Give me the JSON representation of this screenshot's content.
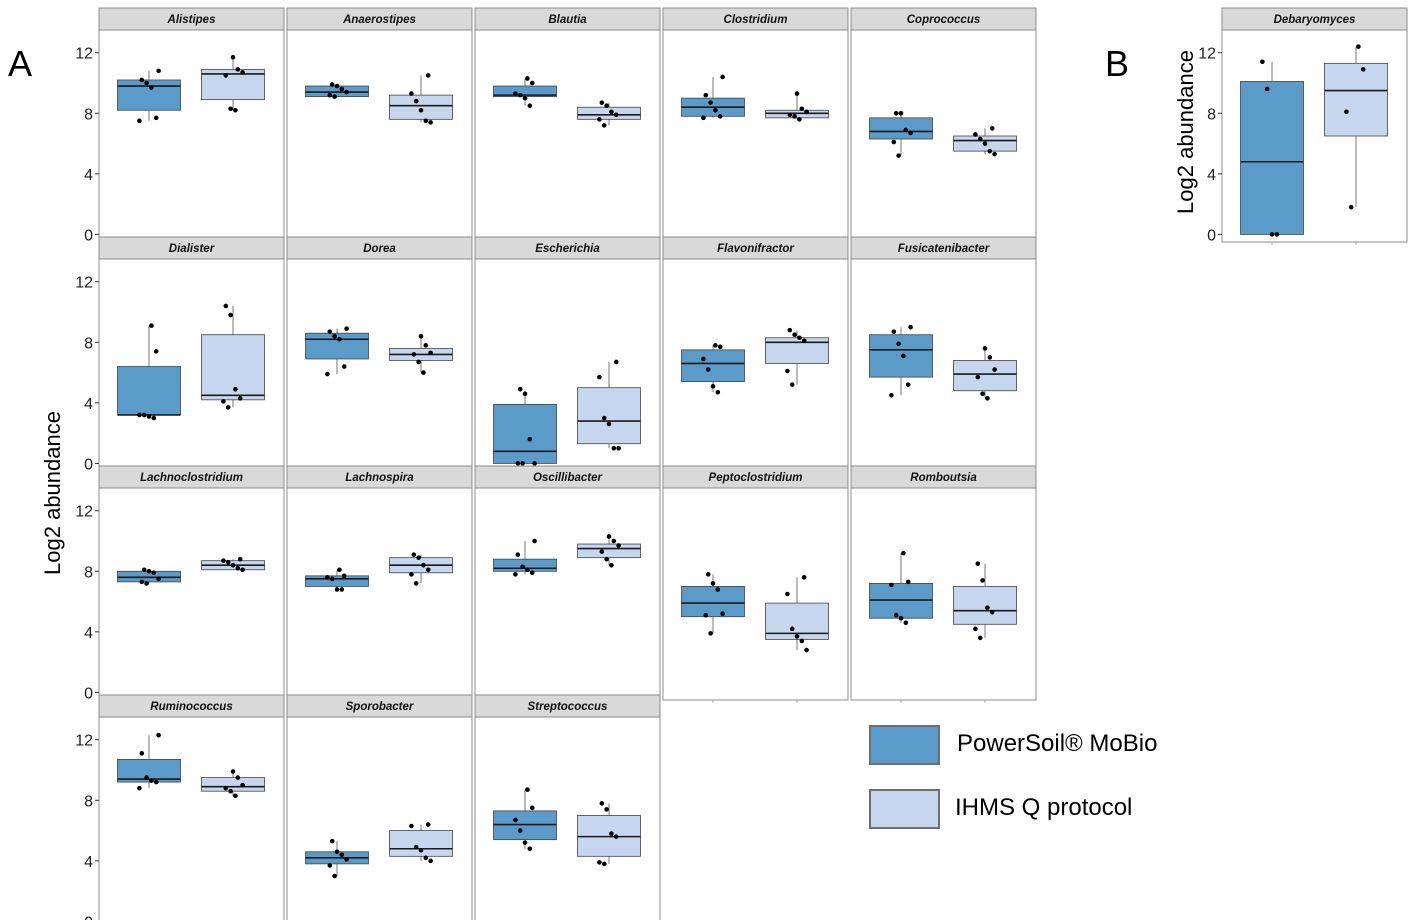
{
  "panel_labels": [
    "A",
    "B"
  ],
  "legend": {
    "entries": [
      {
        "label": "PowerSoil® MoBio",
        "color": "#5a9bca"
      },
      {
        "label": "IHMS Q protocol",
        "color": "#c6d6ee"
      }
    ]
  },
  "colors": {
    "group1_fill": "#5a9bca",
    "group2_fill": "#c6d6ee",
    "strip_fill": "#d9d9d9",
    "panel_border": "#8c8c8c",
    "legend_border": "#6f6f6f"
  },
  "chart_data": [
    {
      "type": "box",
      "panel": "A",
      "ylabel": "Log2 abundance",
      "ylim": [
        -0.5,
        13.5
      ],
      "yticks": [
        0,
        4,
        8,
        12
      ],
      "grid": false,
      "groups": [
        "PowerSoil® MoBio",
        "IHMS Q protocol"
      ],
      "facets": [
        {
          "title": "Alistipes",
          "boxes": [
            {
              "q1": 8.2,
              "median": 9.8,
              "q3": 10.2,
              "whisker_low": 7.5,
              "whisker_high": 10.8,
              "points": [
                7.5,
                7.7,
                9.7,
                10.0,
                10.2,
                10.8
              ]
            },
            {
              "q1": 8.9,
              "median": 10.6,
              "q3": 10.9,
              "whisker_low": 8.2,
              "whisker_high": 11.7,
              "points": [
                8.2,
                8.3,
                10.5,
                10.7,
                10.9,
                11.7
              ]
            }
          ]
        },
        {
          "title": "Anaerostipes",
          "boxes": [
            {
              "q1": 9.1,
              "median": 9.4,
              "q3": 9.8,
              "whisker_low": 9.1,
              "whisker_high": 9.9,
              "points": [
                9.1,
                9.2,
                9.4,
                9.6,
                9.8,
                9.9
              ]
            },
            {
              "q1": 7.6,
              "median": 8.5,
              "q3": 9.2,
              "whisker_low": 7.4,
              "whisker_high": 10.5,
              "points": [
                7.4,
                7.5,
                8.2,
                8.8,
                9.3,
                10.5
              ]
            }
          ]
        },
        {
          "title": "Blautia",
          "boxes": [
            {
              "q1": 9.1,
              "median": 9.2,
              "q3": 9.8,
              "whisker_low": 8.5,
              "whisker_high": 10.3,
              "points": [
                8.5,
                9.0,
                9.2,
                9.3,
                10.0,
                10.3
              ]
            },
            {
              "q1": 7.6,
              "median": 7.9,
              "q3": 8.4,
              "whisker_low": 7.2,
              "whisker_high": 8.7,
              "points": [
                7.2,
                7.6,
                7.9,
                8.1,
                8.5,
                8.7
              ]
            }
          ]
        },
        {
          "title": "Clostridium",
          "boxes": [
            {
              "q1": 7.8,
              "median": 8.4,
              "q3": 9.0,
              "whisker_low": 7.7,
              "whisker_high": 10.4,
              "points": [
                7.7,
                7.8,
                8.2,
                8.7,
                9.2,
                10.4
              ]
            },
            {
              "q1": 7.7,
              "median": 8.0,
              "q3": 8.2,
              "whisker_low": 7.6,
              "whisker_high": 9.3,
              "points": [
                7.6,
                7.8,
                7.9,
                8.1,
                8.3,
                9.3
              ]
            }
          ]
        },
        {
          "title": "Coprococcus",
          "boxes": [
            {
              "q1": 6.3,
              "median": 6.8,
              "q3": 7.7,
              "whisker_low": 5.2,
              "whisker_high": 8.0,
              "points": [
                5.2,
                6.1,
                6.7,
                6.9,
                8.0,
                8.0
              ]
            },
            {
              "q1": 5.5,
              "median": 6.2,
              "q3": 6.5,
              "whisker_low": 5.3,
              "whisker_high": 7.0,
              "points": [
                5.3,
                5.5,
                6.0,
                6.3,
                6.6,
                7.0
              ]
            }
          ]
        },
        {
          "title": "Dialister",
          "boxes": [
            {
              "q1": 3.2,
              "median": 3.2,
              "q3": 6.4,
              "whisker_low": 3.0,
              "whisker_high": 9.1,
              "points": [
                3.0,
                3.1,
                3.2,
                3.2,
                7.4,
                9.1
              ]
            },
            {
              "q1": 4.2,
              "median": 4.5,
              "q3": 8.5,
              "whisker_low": 3.7,
              "whisker_high": 10.4,
              "points": [
                3.7,
                4.1,
                4.3,
                4.9,
                9.8,
                10.4
              ]
            }
          ]
        },
        {
          "title": "Dorea",
          "boxes": [
            {
              "q1": 6.9,
              "median": 8.2,
              "q3": 8.6,
              "whisker_low": 5.9,
              "whisker_high": 8.9,
              "points": [
                5.9,
                6.4,
                8.2,
                8.4,
                8.7,
                8.9
              ]
            },
            {
              "q1": 6.8,
              "median": 7.2,
              "q3": 7.6,
              "whisker_low": 6.0,
              "whisker_high": 8.4,
              "points": [
                6.0,
                6.7,
                7.2,
                7.3,
                7.8,
                8.4
              ]
            }
          ]
        },
        {
          "title": "Escherichia",
          "boxes": [
            {
              "q1": 0.0,
              "median": 0.8,
              "q3": 3.9,
              "whisker_low": 0.0,
              "whisker_high": 4.8,
              "points": [
                0.0,
                0.0,
                0.0,
                1.6,
                4.6,
                4.9
              ]
            },
            {
              "q1": 1.3,
              "median": 2.8,
              "q3": 5.0,
              "whisker_low": 1.0,
              "whisker_high": 6.7,
              "points": [
                1.0,
                1.0,
                2.6,
                3.0,
                5.7,
                6.7
              ]
            }
          ]
        },
        {
          "title": "Flavonifractor",
          "boxes": [
            {
              "q1": 5.4,
              "median": 6.6,
              "q3": 7.5,
              "whisker_low": 4.7,
              "whisker_high": 7.8,
              "points": [
                4.7,
                5.1,
                6.2,
                6.9,
                7.7,
                7.8
              ]
            },
            {
              "q1": 6.6,
              "median": 8.0,
              "q3": 8.3,
              "whisker_low": 5.2,
              "whisker_high": 8.8,
              "points": [
                5.2,
                6.1,
                8.1,
                8.3,
                8.5,
                8.8
              ]
            }
          ]
        },
        {
          "title": "Fusicatenibacter",
          "boxes": [
            {
              "q1": 5.7,
              "median": 7.5,
              "q3": 8.5,
              "whisker_low": 4.5,
              "whisker_high": 9.0,
              "points": [
                4.5,
                5.2,
                7.1,
                7.9,
                8.7,
                9.0
              ]
            },
            {
              "q1": 4.8,
              "median": 5.9,
              "q3": 6.8,
              "whisker_low": 4.3,
              "whisker_high": 7.6,
              "points": [
                4.3,
                4.6,
                5.7,
                6.2,
                7.0,
                7.6
              ]
            }
          ]
        },
        {
          "title": "Lachnoclostridium",
          "boxes": [
            {
              "q1": 7.3,
              "median": 7.6,
              "q3": 8.0,
              "whisker_low": 7.2,
              "whisker_high": 8.1,
              "points": [
                7.2,
                7.3,
                7.5,
                7.9,
                8.0,
                8.1
              ]
            },
            {
              "q1": 8.1,
              "median": 8.4,
              "q3": 8.7,
              "whisker_low": 8.1,
              "whisker_high": 8.8,
              "points": [
                8.1,
                8.2,
                8.4,
                8.6,
                8.7,
                8.8
              ]
            }
          ]
        },
        {
          "title": "Lachnospira",
          "boxes": [
            {
              "q1": 7.0,
              "median": 7.5,
              "q3": 7.7,
              "whisker_low": 6.8,
              "whisker_high": 8.1,
              "points": [
                6.8,
                6.8,
                7.5,
                7.6,
                7.7,
                8.1
              ]
            },
            {
              "q1": 7.9,
              "median": 8.4,
              "q3": 8.9,
              "whisker_low": 7.2,
              "whisker_high": 9.1,
              "points": [
                7.2,
                7.8,
                8.1,
                8.4,
                8.9,
                9.1
              ]
            }
          ]
        },
        {
          "title": "Oscillibacter",
          "boxes": [
            {
              "q1": 8.0,
              "median": 8.2,
              "q3": 8.8,
              "whisker_low": 7.8,
              "whisker_high": 10.0,
              "points": [
                7.8,
                7.9,
                8.1,
                8.3,
                9.1,
                10.0
              ]
            },
            {
              "q1": 8.9,
              "median": 9.5,
              "q3": 9.8,
              "whisker_low": 8.4,
              "whisker_high": 10.3,
              "points": [
                8.4,
                8.8,
                9.3,
                9.7,
                10.0,
                10.3
              ]
            }
          ]
        },
        {
          "title": "Peptoclostridium",
          "boxes": [
            {
              "q1": 5.0,
              "median": 5.9,
              "q3": 7.0,
              "whisker_low": 3.9,
              "whisker_high": 7.8,
              "points": [
                3.9,
                5.1,
                5.2,
                6.8,
                7.2,
                7.8
              ]
            },
            {
              "q1": 3.5,
              "median": 3.9,
              "q3": 5.9,
              "whisker_low": 2.8,
              "whisker_high": 7.6,
              "points": [
                2.8,
                3.4,
                3.7,
                4.2,
                6.5,
                7.6
              ]
            }
          ]
        },
        {
          "title": "Romboutsia",
          "boxes": [
            {
              "q1": 4.9,
              "median": 6.1,
              "q3": 7.2,
              "whisker_low": 4.6,
              "whisker_high": 9.2,
              "points": [
                4.6,
                4.9,
                5.1,
                7.1,
                7.3,
                9.2
              ]
            },
            {
              "q1": 4.5,
              "median": 5.4,
              "q3": 7.0,
              "whisker_low": 3.6,
              "whisker_high": 8.5,
              "points": [
                3.6,
                4.2,
                5.3,
                5.6,
                7.4,
                8.5
              ]
            }
          ]
        },
        {
          "title": "Ruminococcus",
          "boxes": [
            {
              "q1": 9.2,
              "median": 9.4,
              "q3": 10.7,
              "whisker_low": 8.8,
              "whisker_high": 12.3,
              "points": [
                8.8,
                9.2,
                9.3,
                9.5,
                11.1,
                12.3
              ]
            },
            {
              "q1": 8.6,
              "median": 8.9,
              "q3": 9.5,
              "whisker_low": 8.3,
              "whisker_high": 9.9,
              "points": [
                8.3,
                8.6,
                8.8,
                9.0,
                9.5,
                9.9
              ]
            }
          ]
        },
        {
          "title": "Sporobacter",
          "boxes": [
            {
              "q1": 3.8,
              "median": 4.2,
              "q3": 4.6,
              "whisker_low": 3.0,
              "whisker_high": 5.3,
              "points": [
                3.0,
                3.7,
                4.1,
                4.4,
                4.6,
                5.3
              ]
            },
            {
              "q1": 4.3,
              "median": 4.8,
              "q3": 6.0,
              "whisker_low": 4.0,
              "whisker_high": 6.4,
              "points": [
                4.0,
                4.2,
                4.7,
                4.9,
                6.3,
                6.4
              ]
            }
          ]
        },
        {
          "title": "Streptococcus",
          "boxes": [
            {
              "q1": 5.4,
              "median": 6.4,
              "q3": 7.3,
              "whisker_low": 4.8,
              "whisker_high": 8.7,
              "points": [
                4.8,
                5.2,
                6.0,
                6.7,
                7.5,
                8.7
              ]
            },
            {
              "q1": 4.3,
              "median": 5.6,
              "q3": 7.0,
              "whisker_low": 3.8,
              "whisker_high": 7.8,
              "points": [
                3.8,
                3.9,
                5.6,
                5.8,
                7.4,
                7.8
              ]
            }
          ]
        }
      ]
    },
    {
      "type": "box",
      "panel": "B",
      "ylabel": "Log2 abundance",
      "ylim": [
        -0.5,
        13.5
      ],
      "yticks": [
        0,
        4,
        8,
        12
      ],
      "grid": false,
      "groups": [
        "PowerSoil® MoBio",
        "IHMS Q protocol"
      ],
      "facets": [
        {
          "title": "Debaryomyces",
          "boxes": [
            {
              "q1": 0.0,
              "median": 4.8,
              "q3": 10.1,
              "whisker_low": 0.0,
              "whisker_high": 11.4,
              "points": [
                0.0,
                0.0,
                9.6,
                11.4
              ]
            },
            {
              "q1": 6.5,
              "median": 9.5,
              "q3": 11.3,
              "whisker_low": 1.8,
              "whisker_high": 12.4,
              "points": [
                1.8,
                8.1,
                10.9,
                12.4
              ]
            }
          ]
        }
      ]
    }
  ]
}
